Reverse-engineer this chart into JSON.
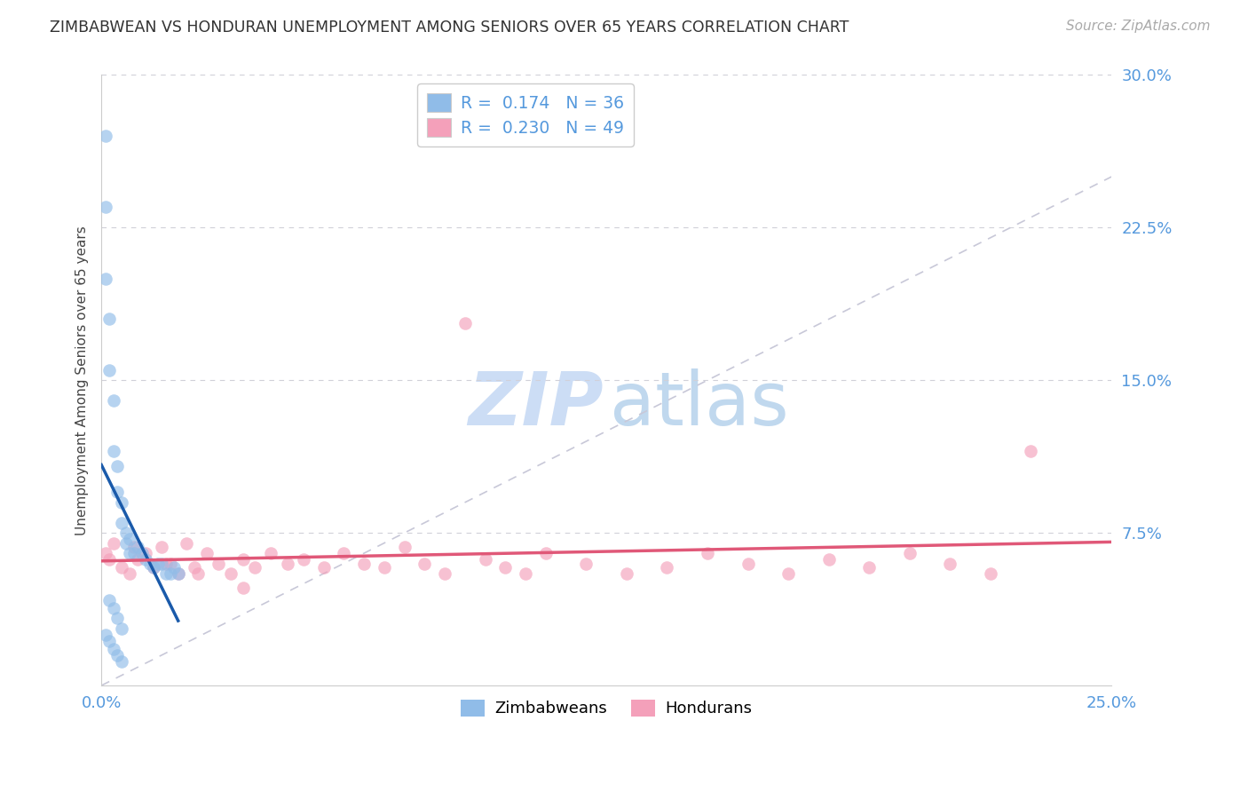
{
  "title": "ZIMBABWEAN VS HONDURAN UNEMPLOYMENT AMONG SENIORS OVER 65 YEARS CORRELATION CHART",
  "source": "Source: ZipAtlas.com",
  "ylabel": "Unemployment Among Seniors over 65 years",
  "xlim": [
    0.0,
    0.25
  ],
  "ylim": [
    0.0,
    0.3
  ],
  "xticks": [
    0.0,
    0.05,
    0.1,
    0.15,
    0.2,
    0.25
  ],
  "xtick_labels": [
    "0.0%",
    "",
    "",
    "",
    "",
    "25.0%"
  ],
  "yticks_right": [
    0.0,
    0.075,
    0.15,
    0.225,
    0.3
  ],
  "ytick_labels_right": [
    "",
    "7.5%",
    "15.0%",
    "22.5%",
    "30.0%"
  ],
  "zimbabwean_color": "#90bce8",
  "honduran_color": "#f4a0ba",
  "zim_trend_color": "#1a5aaa",
  "hon_trend_color": "#e05878",
  "diagonal_color": "#c8c8d8",
  "watermark_zip_color": "#ccddf5",
  "watermark_atlas_color": "#c0d8ee",
  "title_color": "#333333",
  "source_color": "#aaaaaa",
  "tick_color": "#5599dd",
  "grid_color": "#d0d0d8",
  "zim_r": "0.174",
  "zim_n": "36",
  "hon_r": "0.230",
  "hon_n": "49",
  "zim_x": [
    0.001,
    0.001,
    0.001,
    0.002,
    0.002,
    0.003,
    0.003,
    0.004,
    0.004,
    0.005,
    0.005,
    0.006,
    0.006,
    0.007,
    0.007,
    0.008,
    0.009,
    0.01,
    0.011,
    0.012,
    0.013,
    0.014,
    0.015,
    0.016,
    0.017,
    0.018,
    0.019,
    0.002,
    0.003,
    0.004,
    0.005,
    0.001,
    0.002,
    0.003,
    0.004,
    0.005
  ],
  "zim_y": [
    0.27,
    0.235,
    0.2,
    0.18,
    0.155,
    0.14,
    0.115,
    0.108,
    0.095,
    0.09,
    0.08,
    0.075,
    0.07,
    0.072,
    0.065,
    0.065,
    0.068,
    0.065,
    0.062,
    0.06,
    0.058,
    0.06,
    0.06,
    0.055,
    0.055,
    0.058,
    0.055,
    0.042,
    0.038,
    0.033,
    0.028,
    0.025,
    0.022,
    0.018,
    0.015,
    0.012
  ],
  "hon_x": [
    0.001,
    0.002,
    0.003,
    0.005,
    0.007,
    0.009,
    0.011,
    0.013,
    0.015,
    0.017,
    0.019,
    0.021,
    0.023,
    0.026,
    0.029,
    0.032,
    0.035,
    0.038,
    0.042,
    0.046,
    0.05,
    0.055,
    0.06,
    0.065,
    0.07,
    0.075,
    0.08,
    0.085,
    0.09,
    0.095,
    0.1,
    0.105,
    0.11,
    0.12,
    0.13,
    0.14,
    0.15,
    0.16,
    0.17,
    0.18,
    0.19,
    0.2,
    0.21,
    0.22,
    0.23,
    0.008,
    0.016,
    0.024,
    0.035
  ],
  "hon_y": [
    0.065,
    0.062,
    0.07,
    0.058,
    0.055,
    0.062,
    0.065,
    0.058,
    0.068,
    0.06,
    0.055,
    0.07,
    0.058,
    0.065,
    0.06,
    0.055,
    0.062,
    0.058,
    0.065,
    0.06,
    0.062,
    0.058,
    0.065,
    0.06,
    0.058,
    0.068,
    0.06,
    0.055,
    0.178,
    0.062,
    0.058,
    0.055,
    0.065,
    0.06,
    0.055,
    0.058,
    0.065,
    0.06,
    0.055,
    0.062,
    0.058,
    0.065,
    0.06,
    0.055,
    0.115,
    0.068,
    0.06,
    0.055,
    0.048
  ]
}
